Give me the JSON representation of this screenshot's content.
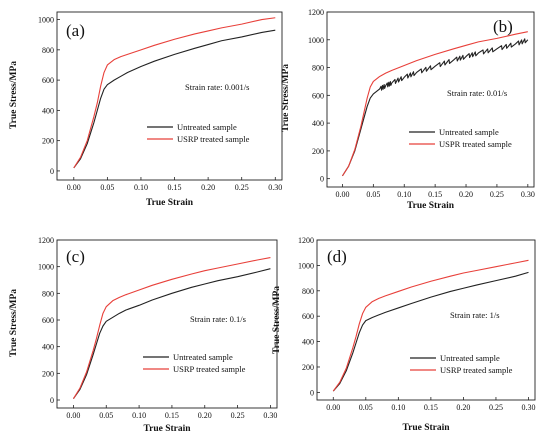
{
  "figure": {
    "background": "#ffffff"
  },
  "chart_data": [
    {
      "type": "line",
      "panel_label": "(a)",
      "annotation": "Strain rate: 0.001/s",
      "xlabel": "True Strain",
      "ylabel": "True Stress/MPa",
      "xlim": [
        -0.025,
        0.31
      ],
      "ylim": [
        -60,
        1050
      ],
      "xticks": [
        "0.00",
        "0.05",
        "0.10",
        "0.15",
        "0.20",
        "0.25",
        "0.30"
      ],
      "yticks": [
        "0",
        "200",
        "400",
        "600",
        "800",
        "1000"
      ],
      "legend_position": "right",
      "series": [
        {
          "name": "Untreated sample",
          "color": "#222222",
          "serrated": false,
          "x": [
            0.0,
            0.01,
            0.02,
            0.03,
            0.035,
            0.04,
            0.045,
            0.05,
            0.06,
            0.07,
            0.08,
            0.1,
            0.12,
            0.15,
            0.18,
            0.2,
            0.22,
            0.25,
            0.28,
            0.3
          ],
          "y": [
            20,
            80,
            180,
            320,
            400,
            480,
            540,
            570,
            600,
            625,
            650,
            690,
            725,
            770,
            810,
            835,
            860,
            885,
            915,
            930
          ]
        },
        {
          "name": "USRP treated sample",
          "color": "#e8403a",
          "serrated": false,
          "x": [
            0.0,
            0.01,
            0.02,
            0.03,
            0.035,
            0.04,
            0.045,
            0.05,
            0.06,
            0.07,
            0.08,
            0.1,
            0.12,
            0.15,
            0.18,
            0.2,
            0.22,
            0.25,
            0.28,
            0.3
          ],
          "y": [
            20,
            90,
            200,
            360,
            450,
            560,
            650,
            700,
            735,
            755,
            770,
            800,
            830,
            870,
            905,
            925,
            945,
            970,
            1000,
            1012
          ]
        }
      ]
    },
    {
      "type": "line",
      "panel_label": "(b)",
      "annotation": "Strain rate: 0.01/s",
      "xlabel": "True Strain",
      "ylabel": "True Stress/MPa",
      "xlim": [
        -0.025,
        0.31
      ],
      "ylim": [
        -60,
        1200
      ],
      "xticks": [
        "0.00",
        "0.05",
        "0.10",
        "0.15",
        "0.20",
        "0.25",
        "0.30"
      ],
      "yticks": [
        "0",
        "200",
        "400",
        "600",
        "800",
        "1000",
        "1200"
      ],
      "legend_position": "right",
      "series": [
        {
          "name": "Untreated sample",
          "color": "#222222",
          "serrated": true,
          "x": [
            0.0,
            0.01,
            0.02,
            0.03,
            0.035,
            0.04,
            0.045,
            0.05,
            0.06,
            0.07,
            0.08,
            0.1,
            0.12,
            0.15,
            0.18,
            0.2,
            0.22,
            0.25,
            0.28,
            0.3
          ],
          "y": [
            20,
            90,
            200,
            360,
            440,
            520,
            580,
            610,
            645,
            670,
            690,
            730,
            765,
            810,
            855,
            880,
            905,
            935,
            970,
            1000
          ]
        },
        {
          "name": "USPR treated sample",
          "color": "#e8403a",
          "serrated": false,
          "x": [
            0.0,
            0.01,
            0.02,
            0.03,
            0.035,
            0.04,
            0.045,
            0.05,
            0.06,
            0.07,
            0.08,
            0.1,
            0.12,
            0.15,
            0.18,
            0.2,
            0.22,
            0.25,
            0.28,
            0.3
          ],
          "y": [
            20,
            90,
            210,
            380,
            480,
            580,
            660,
            700,
            735,
            760,
            780,
            815,
            850,
            895,
            935,
            960,
            985,
            1010,
            1040,
            1058
          ]
        }
      ]
    },
    {
      "type": "line",
      "panel_label": "(c)",
      "annotation": "Strain rate: 0.1/s",
      "xlabel": "True Strain",
      "ylabel": "True Stress/MPa",
      "xlim": [
        -0.025,
        0.31
      ],
      "ylim": [
        -60,
        1200
      ],
      "xticks": [
        "0.00",
        "0.05",
        "0.10",
        "0.15",
        "0.20",
        "0.25",
        "0.30"
      ],
      "yticks": [
        "0",
        "200",
        "400",
        "600",
        "800",
        "1000",
        "1200"
      ],
      "legend_position": "right",
      "series": [
        {
          "name": "Untreated sample",
          "color": "#222222",
          "serrated": false,
          "x": [
            0.0,
            0.01,
            0.02,
            0.03,
            0.035,
            0.04,
            0.045,
            0.05,
            0.06,
            0.07,
            0.08,
            0.1,
            0.12,
            0.15,
            0.18,
            0.2,
            0.22,
            0.25,
            0.28,
            0.3
          ],
          "y": [
            10,
            80,
            190,
            340,
            420,
            500,
            555,
            590,
            620,
            650,
            675,
            710,
            750,
            800,
            845,
            870,
            895,
            925,
            960,
            985
          ]
        },
        {
          "name": "USRP treated sample",
          "color": "#e8403a",
          "serrated": false,
          "x": [
            0.0,
            0.01,
            0.02,
            0.03,
            0.035,
            0.04,
            0.045,
            0.05,
            0.06,
            0.07,
            0.08,
            0.1,
            0.12,
            0.15,
            0.18,
            0.2,
            0.22,
            0.25,
            0.28,
            0.3
          ],
          "y": [
            10,
            90,
            210,
            370,
            460,
            560,
            650,
            700,
            745,
            770,
            790,
            825,
            860,
            905,
            945,
            970,
            990,
            1020,
            1050,
            1068
          ]
        }
      ]
    },
    {
      "type": "line",
      "panel_label": "(d)",
      "annotation": "Strain rate: 1/s",
      "xlabel": "True Strain",
      "ylabel": "True Stress/MPa",
      "xlim": [
        -0.025,
        0.31
      ],
      "ylim": [
        -60,
        1200
      ],
      "xticks": [
        "0.00",
        "0.05",
        "0.10",
        "0.15",
        "0.20",
        "0.25",
        "0.30"
      ],
      "yticks": [
        "0",
        "200",
        "400",
        "600",
        "800",
        "1000",
        "1200"
      ],
      "legend_position": "right",
      "series": [
        {
          "name": "Untreated sample",
          "color": "#222222",
          "serrated": false,
          "x": [
            0.0,
            0.01,
            0.02,
            0.03,
            0.035,
            0.04,
            0.045,
            0.05,
            0.06,
            0.07,
            0.08,
            0.1,
            0.12,
            0.15,
            0.18,
            0.2,
            0.22,
            0.25,
            0.28,
            0.3
          ],
          "y": [
            10,
            70,
            170,
            310,
            390,
            470,
            530,
            565,
            590,
            610,
            630,
            665,
            700,
            750,
            795,
            820,
            845,
            880,
            915,
            945
          ]
        },
        {
          "name": "USRP treated sample",
          "color": "#e8403a",
          "serrated": false,
          "x": [
            0.0,
            0.01,
            0.02,
            0.03,
            0.035,
            0.04,
            0.045,
            0.05,
            0.06,
            0.07,
            0.08,
            0.1,
            0.12,
            0.15,
            0.18,
            0.2,
            0.22,
            0.25,
            0.28,
            0.3
          ],
          "y": [
            10,
            80,
            190,
            350,
            440,
            540,
            620,
            670,
            715,
            740,
            760,
            795,
            830,
            875,
            915,
            940,
            960,
            990,
            1020,
            1040
          ]
        }
      ]
    }
  ]
}
